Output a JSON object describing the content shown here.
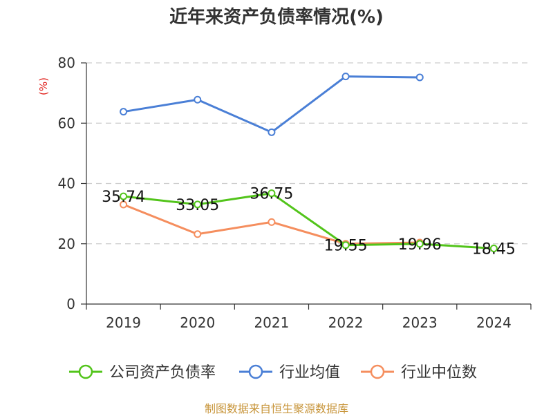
{
  "chart_data": {
    "type": "line",
    "title": "近年来资产负债率情况(%)",
    "ylabel": "(%)",
    "xlabel": "",
    "categories": [
      "2019",
      "2020",
      "2021",
      "2022",
      "2023",
      "2024"
    ],
    "ylim": [
      0,
      80
    ],
    "yticks": [
      0,
      20,
      40,
      60,
      80
    ],
    "grid": "horizontal dashed",
    "legend_position": "bottom",
    "series": [
      {
        "name": "公司资产负债率",
        "color": "#52c41a",
        "values": [
          35.74,
          33.05,
          36.75,
          19.55,
          19.96,
          18.45
        ],
        "labels": [
          "35.74",
          "33.05",
          "36.75",
          "19.55",
          "19.96",
          "18.45"
        ]
      },
      {
        "name": "行业均值",
        "color": "#4a7fd6",
        "values": [
          63.8,
          67.8,
          57.0,
          75.5,
          75.2,
          null
        ]
      },
      {
        "name": "行业中位数",
        "color": "#f58e5e",
        "values": [
          33.0,
          23.2,
          27.2,
          20.0,
          20.4,
          null
        ]
      }
    ]
  },
  "source_note": "制图数据来自恒生聚源数据库",
  "colors": {
    "ylabel": "#e0201b",
    "source_note": "#c8963c",
    "grid": "#cccccc",
    "axis": "#333333"
  }
}
